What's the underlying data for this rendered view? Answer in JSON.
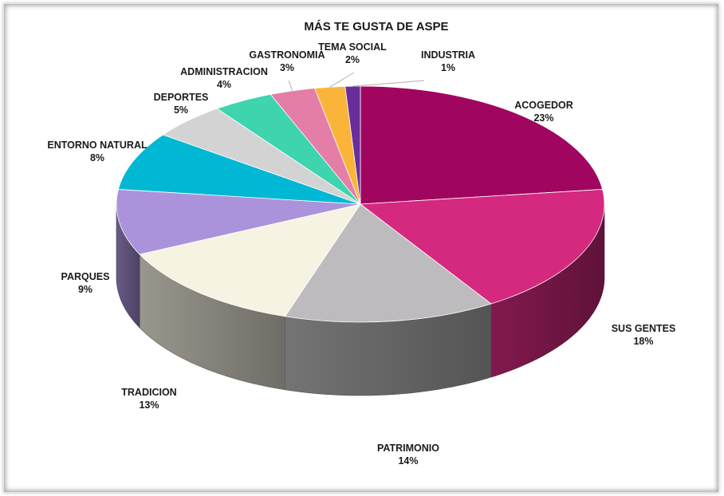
{
  "chart_data": {
    "type": "pie",
    "title": "MÁS TE GUSTA DE ASPE",
    "three_d": true,
    "slices": [
      {
        "label": "ACOGEDOR",
        "value": 23,
        "display": "23%",
        "color": "#A0065F"
      },
      {
        "label": "SUS GENTES",
        "value": 18,
        "display": "18%",
        "color": "#D4297F"
      },
      {
        "label": "PATRIMONIO",
        "value": 14,
        "display": "14%",
        "color": "#BDBBBD"
      },
      {
        "label": "TRADICION",
        "value": 13,
        "display": "13%",
        "color": "#F7F3E3"
      },
      {
        "label": "PARQUES",
        "value": 9,
        "display": "9%",
        "color": "#AA93DA"
      },
      {
        "label": "ENTORNO NATURAL",
        "value": 8,
        "display": "8%",
        "color": "#00B8D4"
      },
      {
        "label": "DEPORTES",
        "value": 5,
        "display": "5%",
        "color": "#D3D3D3"
      },
      {
        "label": "ADMINISTRACION",
        "value": 4,
        "display": "4%",
        "color": "#3ED4AE"
      },
      {
        "label": "GASTRONOMIA",
        "value": 3,
        "display": "3%",
        "color": "#E47EA7"
      },
      {
        "label": "TEMA SOCIAL",
        "value": 2,
        "display": "2%",
        "color": "#FBB43A"
      },
      {
        "label": "INDUSTRIA",
        "value": 1,
        "display": "1%",
        "color": "#6A2E9C"
      }
    ],
    "legend": "none",
    "data_labels": "outside"
  }
}
